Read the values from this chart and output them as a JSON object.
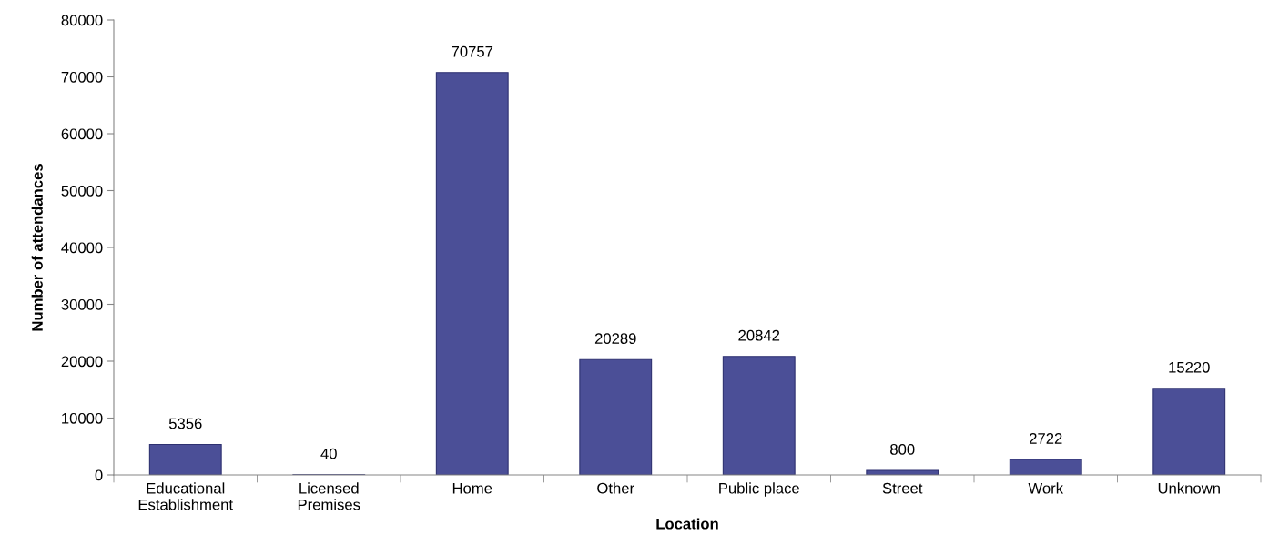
{
  "chart_data": {
    "type": "bar",
    "xlabel": "Location",
    "ylabel": "Number of attendances",
    "categories": [
      "Educational\nEstablishment",
      "Licensed\nPremises",
      "Home",
      "Other",
      "Public place",
      "Street",
      "Work",
      "Unknown"
    ],
    "values": [
      5356,
      40,
      70757,
      20289,
      20842,
      800,
      2722,
      15220
    ],
    "color": "#4b4f97",
    "ylim": [
      0,
      80000
    ],
    "yticks": [
      0,
      10000,
      20000,
      30000,
      40000,
      50000,
      60000,
      70000,
      80000
    ],
    "grid": false,
    "data_labels": true
  }
}
